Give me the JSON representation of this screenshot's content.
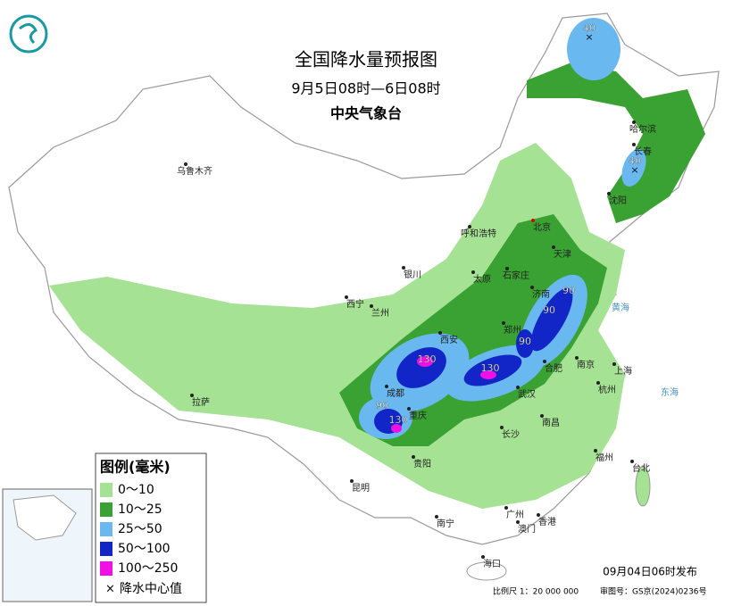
{
  "header": {
    "title": "全国降水量预报图",
    "period": "9月5日08时—6日08时",
    "agency": "中央气象台"
  },
  "legend": {
    "title": "图例(毫米)",
    "items": [
      {
        "label": "0～10",
        "color": "#a6e294"
      },
      {
        "label": "10～25",
        "color": "#3aa233"
      },
      {
        "label": "25～50",
        "color": "#6ab8f0"
      },
      {
        "label": "50～100",
        "color": "#1226c8"
      },
      {
        "label": "100～250",
        "color": "#f20fe6"
      }
    ],
    "center_label": "降水中心值"
  },
  "cities": [
    "乌鲁木齐",
    "呼和浩特",
    "北京",
    "天津",
    "石家庄",
    "太原",
    "银川",
    "西宁",
    "兰州",
    "济南",
    "郑州",
    "西安",
    "合肥",
    "南京",
    "上海",
    "杭州",
    "武汉",
    "成都",
    "重庆",
    "长沙",
    "南昌",
    "拉萨",
    "贵阳",
    "昆明",
    "福州",
    "台北",
    "南宁",
    "广州",
    "澳门",
    "香港",
    "海口",
    "哈尔滨",
    "长春",
    "沈阳"
  ],
  "seas": [
    "黄海",
    "东海"
  ],
  "centers": [
    40,
    40,
    90,
    90,
    90,
    130,
    130,
    90,
    130
  ],
  "footer": {
    "issued": "09月04日06时发布",
    "scale": "比例尺 1：20 000 000",
    "approval": "审图号：GS京(2024)0236号"
  }
}
